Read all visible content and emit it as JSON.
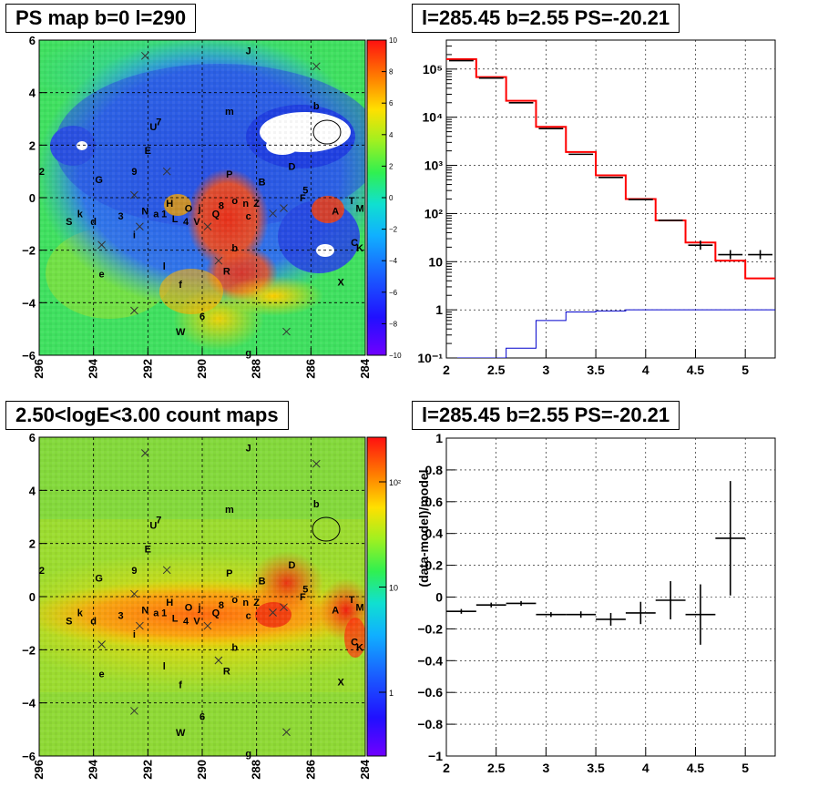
{
  "chart_data": [
    {
      "type": "heatmap",
      "title": "PS map b=0 l=290",
      "x_ticks": [
        "296",
        "294",
        "292",
        "290",
        "288",
        "286",
        "284"
      ],
      "y_ticks": [
        "6",
        "4",
        "2",
        "0",
        "−2",
        "−4",
        "−6"
      ],
      "xlim": [
        296,
        284
      ],
      "ylim": [
        -6,
        6
      ],
      "colorbar": {
        "scale": "linear",
        "range": [
          -10,
          10
        ],
        "ticks": [
          "10",
          "8",
          "6",
          "4",
          "2",
          "0",
          "−2",
          "−4",
          "−6",
          "−8",
          "−10"
        ]
      },
      "grid": true
    },
    {
      "type": "line",
      "title": "l=285.45 b=2.55 PS=-20.21",
      "x_ticks": [
        "2",
        "2.5",
        "3",
        "3.5",
        "4",
        "4.5",
        "5"
      ],
      "y_ticks": [
        "10⁻¹",
        "1",
        "10",
        "10²",
        "10³",
        "10⁴",
        "10⁵"
      ],
      "xlim": [
        2,
        5.3
      ],
      "ylim": [
        0.1,
        400000
      ],
      "y_scale": "log",
      "grid": true,
      "bin_edges": [
        2.0,
        2.3,
        2.6,
        2.9,
        3.2,
        3.5,
        3.8,
        4.1,
        4.4,
        4.7,
        5.0,
        5.3
      ],
      "series": [
        {
          "color": "#ff0000",
          "style": "step",
          "values": [
            160000,
            68000,
            22000,
            6300,
            1900,
            620,
            200,
            72,
            25,
            10.5,
            4.5
          ]
        },
        {
          "color": "#000000",
          "style": "errorbar",
          "values": [
            150000,
            65000,
            20000,
            5800,
            1700,
            560,
            195,
            72,
            22,
            14,
            14
          ]
        },
        {
          "color": "#0000cc",
          "style": "step",
          "values": [
            0.1,
            0.1,
            0.16,
            0.6,
            0.9,
            0.95,
            1.0,
            1.0,
            1.0,
            1.0,
            1.0
          ]
        }
      ]
    },
    {
      "type": "heatmap",
      "title": "2.50<logE<3.00 count maps",
      "x_ticks": [
        "296",
        "294",
        "292",
        "290",
        "288",
        "286",
        "284"
      ],
      "y_ticks": [
        "6",
        "4",
        "2",
        "0",
        "−2",
        "−4",
        "−6"
      ],
      "xlim": [
        296,
        284
      ],
      "ylim": [
        -6,
        6
      ],
      "colorbar": {
        "scale": "log",
        "ticks": [
          "10²",
          "10",
          "1"
        ]
      },
      "grid": true
    },
    {
      "type": "scatter",
      "title": "l=285.45 b=2.55 PS=-20.21",
      "ylabel": "(data-model)/model",
      "x_ticks": [
        "2",
        "2.5",
        "3",
        "3.5",
        "4",
        "4.5",
        "5"
      ],
      "y_ticks": [
        "1",
        "0.8",
        "0.6",
        "0.4",
        "0.2",
        "0",
        "−0.2",
        "−0.4",
        "−0.6",
        "−0.8",
        "−1"
      ],
      "xlim": [
        2,
        5.3
      ],
      "ylim": [
        -1,
        1
      ],
      "grid": true,
      "points": [
        {
          "x": 2.15,
          "y": -0.09,
          "xerr": 0.15,
          "yerr": 0.015
        },
        {
          "x": 2.45,
          "y": -0.05,
          "xerr": 0.15,
          "yerr": 0.015
        },
        {
          "x": 2.75,
          "y": -0.04,
          "xerr": 0.15,
          "yerr": 0.015
        },
        {
          "x": 3.05,
          "y": -0.11,
          "xerr": 0.15,
          "yerr": 0.015
        },
        {
          "x": 3.35,
          "y": -0.11,
          "xerr": 0.15,
          "yerr": 0.02
        },
        {
          "x": 3.65,
          "y": -0.14,
          "xerr": 0.15,
          "yerr": 0.04
        },
        {
          "x": 3.95,
          "y": -0.1,
          "xerr": 0.15,
          "yerr": 0.07
        },
        {
          "x": 4.25,
          "y": -0.02,
          "xerr": 0.15,
          "yerr": 0.12
        },
        {
          "x": 4.55,
          "y": -0.11,
          "xerr": 0.15,
          "yerr": 0.19
        },
        {
          "x": 4.85,
          "y": 0.37,
          "xerr": 0.15,
          "yerr": 0.36
        }
      ]
    }
  ],
  "source_labels": [
    {
      "t": "J",
      "l": 288.3,
      "b": 5.6
    },
    {
      "t": "m",
      "l": 289.0,
      "b": 3.3
    },
    {
      "t": "b",
      "l": 285.8,
      "b": 3.5
    },
    {
      "t": "U",
      "l": 291.8,
      "b": 2.7
    },
    {
      "t": "7",
      "l": 291.6,
      "b": 2.9
    },
    {
      "t": "E",
      "l": 292.0,
      "b": 1.8
    },
    {
      "t": "2",
      "l": 295.9,
      "b": 1.0
    },
    {
      "t": "G",
      "l": 293.8,
      "b": 0.7
    },
    {
      "t": "9",
      "l": 292.5,
      "b": 1.0
    },
    {
      "t": "P",
      "l": 289.0,
      "b": 0.9
    },
    {
      "t": "B",
      "l": 287.8,
      "b": 0.6
    },
    {
      "t": "D",
      "l": 286.7,
      "b": 1.2
    },
    {
      "t": "5",
      "l": 286.2,
      "b": 0.3
    },
    {
      "t": "F",
      "l": 286.3,
      "b": 0.0
    },
    {
      "t": "T",
      "l": 284.5,
      "b": -0.1
    },
    {
      "t": "M",
      "l": 284.2,
      "b": -0.4
    },
    {
      "t": "A",
      "l": 285.1,
      "b": -0.5
    },
    {
      "t": "Z",
      "l": 288.0,
      "b": -0.2
    },
    {
      "t": "o",
      "l": 288.8,
      "b": -0.1
    },
    {
      "t": "n",
      "l": 288.4,
      "b": -0.2
    },
    {
      "t": "8",
      "l": 289.3,
      "b": -0.3
    },
    {
      "t": "Q",
      "l": 289.5,
      "b": -0.6
    },
    {
      "t": "j",
      "l": 290.1,
      "b": -0.4
    },
    {
      "t": "c",
      "l": 288.3,
      "b": -0.7
    },
    {
      "t": "O",
      "l": 290.5,
      "b": -0.4
    },
    {
      "t": "V",
      "l": 290.2,
      "b": -0.9
    },
    {
      "t": "4",
      "l": 290.6,
      "b": -0.9
    },
    {
      "t": "L",
      "l": 291.0,
      "b": -0.8
    },
    {
      "t": "H",
      "l": 291.2,
      "b": -0.2
    },
    {
      "t": "1",
      "l": 291.4,
      "b": -0.6
    },
    {
      "t": "a",
      "l": 291.7,
      "b": -0.6
    },
    {
      "t": "N",
      "l": 292.1,
      "b": -0.5
    },
    {
      "t": "3",
      "l": 293.0,
      "b": -0.7
    },
    {
      "t": "k",
      "l": 294.5,
      "b": -0.6
    },
    {
      "t": "d",
      "l": 294.0,
      "b": -0.9
    },
    {
      "t": "S",
      "l": 294.9,
      "b": -0.9
    },
    {
      "t": "i",
      "l": 292.5,
      "b": -1.4
    },
    {
      "t": "C",
      "l": 284.4,
      "b": -1.7
    },
    {
      "t": "K",
      "l": 284.2,
      "b": -1.9
    },
    {
      "t": "b",
      "l": 288.8,
      "b": -1.9
    },
    {
      "t": "e",
      "l": 293.7,
      "b": -2.9
    },
    {
      "t": "l",
      "l": 291.4,
      "b": -2.6
    },
    {
      "t": "R",
      "l": 289.1,
      "b": -2.8
    },
    {
      "t": "f",
      "l": 290.8,
      "b": -3.3
    },
    {
      "t": "X",
      "l": 284.9,
      "b": -3.2
    },
    {
      "t": "6",
      "l": 290.0,
      "b": -4.5
    },
    {
      "t": "W",
      "l": 290.8,
      "b": -5.1
    },
    {
      "t": "g",
      "l": 288.3,
      "b": -5.9
    }
  ],
  "source_crosses": [
    {
      "l": 292.1,
      "b": 5.4
    },
    {
      "l": 285.8,
      "b": 5.0
    },
    {
      "l": 291.3,
      "b": 1.0
    },
    {
      "l": 292.5,
      "b": 0.1
    },
    {
      "l": 287.4,
      "b": -0.6
    },
    {
      "l": 287.0,
      "b": -0.4
    },
    {
      "l": 289.8,
      "b": -1.1
    },
    {
      "l": 292.3,
      "b": -1.1
    },
    {
      "l": 293.7,
      "b": -1.8
    },
    {
      "l": 289.4,
      "b": -2.4
    },
    {
      "l": 292.5,
      "b": -4.3
    },
    {
      "l": 286.9,
      "b": -5.1
    }
  ]
}
